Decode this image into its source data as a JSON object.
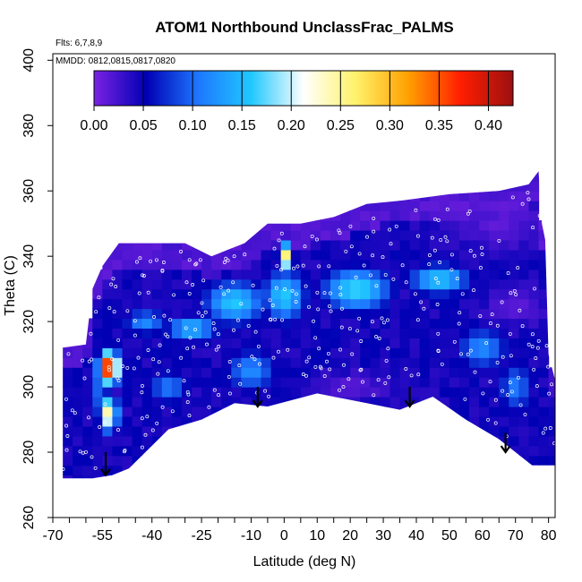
{
  "chart_data": {
    "type": "heatmap",
    "title": "ATOM1 Northbound UnclassFrac_PALMS",
    "annotations": [
      "Flts: 6,7,8,9",
      "MMDD: 0812,0815,0817,0820"
    ],
    "xlabel": "Latitude (deg N)",
    "ylabel": "Theta (C)",
    "xlim": [
      -70,
      82
    ],
    "ylim": [
      260,
      402
    ],
    "x_ticks": [
      -70,
      -55,
      -40,
      -25,
      -10,
      0,
      10,
      20,
      30,
      40,
      50,
      60,
      70,
      80
    ],
    "x_tick_labels": [
      "-70",
      "-55",
      "-40",
      "-25",
      "-10",
      "0",
      "10",
      "20",
      "30",
      "40",
      "50",
      "60",
      "70",
      "80"
    ],
    "y_ticks": [
      260,
      280,
      300,
      320,
      340,
      360,
      380,
      400
    ],
    "y_tick_labels": [
      "260",
      "280",
      "300",
      "320",
      "340",
      "360",
      "380",
      "400"
    ],
    "colorbar": {
      "vmin": 0.0,
      "vmax": 0.425,
      "ticks": [
        0.0,
        0.05,
        0.1,
        0.15,
        0.2,
        0.25,
        0.3,
        0.35,
        0.4
      ],
      "tick_labels": [
        "0.00",
        "0.05",
        "0.10",
        "0.15",
        "0.20",
        "0.25",
        "0.30",
        "0.35",
        "0.40"
      ],
      "colors": [
        "#7b22e3",
        "#0000b4",
        "#1e78ff",
        "#20c8ff",
        "#ffffff",
        "#fff26a",
        "#ffa000",
        "#ff1e00",
        "#9b1010"
      ]
    },
    "domain": {
      "top": [
        [
          -67,
          312
        ],
        [
          -60,
          313
        ],
        [
          -58,
          330
        ],
        [
          -55,
          337
        ],
        [
          -50,
          344
        ],
        [
          -40,
          344
        ],
        [
          -30,
          344
        ],
        [
          -22,
          340
        ],
        [
          -12,
          344
        ],
        [
          -5,
          350
        ],
        [
          5,
          350
        ],
        [
          15,
          352
        ],
        [
          25,
          356
        ],
        [
          35,
          357
        ],
        [
          50,
          359
        ],
        [
          65,
          360
        ],
        [
          74,
          362
        ],
        [
          77,
          366
        ],
        [
          78,
          350
        ],
        [
          79,
          345
        ],
        [
          80,
          310
        ],
        [
          82,
          302
        ],
        [
          82,
          276
        ]
      ],
      "bottom": [
        [
          -67,
          272
        ],
        [
          -58,
          272
        ],
        [
          -52,
          273
        ],
        [
          -47,
          275
        ],
        [
          -35,
          287
        ],
        [
          -25,
          290
        ],
        [
          -15,
          295
        ],
        [
          -5,
          294
        ],
        [
          10,
          298
        ],
        [
          25,
          295
        ],
        [
          35,
          293
        ],
        [
          45,
          297
        ],
        [
          55,
          290
        ],
        [
          65,
          284
        ],
        [
          75,
          276
        ],
        [
          82,
          276
        ]
      ]
    },
    "hotspots": [
      {
        "x": -53,
        "y": 306,
        "value": 0.4,
        "sx": 2.2,
        "sy": 3.5
      },
      {
        "x": -53,
        "y": 292,
        "value": 0.25,
        "sx": 2.0,
        "sy": 4.0
      },
      {
        "x": 0,
        "y": 340,
        "value": 0.28,
        "sx": 1.4,
        "sy": 3.0
      },
      {
        "x": -15,
        "y": 326,
        "value": 0.16,
        "sx": 7.0,
        "sy": 5.0
      },
      {
        "x": -28,
        "y": 318,
        "value": 0.15,
        "sx": 6.0,
        "sy": 3.0
      },
      {
        "x": 0,
        "y": 328,
        "value": 0.16,
        "sx": 5.0,
        "sy": 6.0
      },
      {
        "x": 22,
        "y": 330,
        "value": 0.17,
        "sx": 8.0,
        "sy": 5.0
      },
      {
        "x": 47,
        "y": 333,
        "value": 0.16,
        "sx": 7.0,
        "sy": 3.5
      },
      {
        "x": -42,
        "y": 320,
        "value": 0.12,
        "sx": 5.0,
        "sy": 3.0
      },
      {
        "x": -35,
        "y": 300,
        "value": 0.11,
        "sx": 5.0,
        "sy": 4.0
      },
      {
        "x": -10,
        "y": 305,
        "value": 0.12,
        "sx": 6.0,
        "sy": 5.0
      },
      {
        "x": 60,
        "y": 312,
        "value": 0.12,
        "sx": 6.0,
        "sy": 5.0
      },
      {
        "x": 70,
        "y": 300,
        "value": 0.11,
        "sx": 4.0,
        "sy": 6.0
      },
      {
        "x": -57,
        "y": 300,
        "value": 0.1,
        "sx": 2.0,
        "sy": 10.0
      }
    ],
    "low_regions": [
      {
        "x": -60,
        "y": 338,
        "sx": 4.0,
        "sy": 4.0
      },
      {
        "x": 65,
        "y": 350,
        "sx": 10.0,
        "sy": 5.0
      },
      {
        "x": 20,
        "y": 300,
        "sx": 8.0,
        "sy": 3.0
      },
      {
        "x": 70,
        "y": 325,
        "sx": 6.0,
        "sy": 4.0
      }
    ],
    "tropopause_arrows": [
      {
        "x": -54,
        "y": 280,
        "y_tip": 273
      },
      {
        "x": -8,
        "y": 300,
        "y_tip": 294
      },
      {
        "x": 38,
        "y": 300,
        "y_tip": 294
      },
      {
        "x": 67,
        "y": 286,
        "y_tip": 280
      }
    ]
  }
}
